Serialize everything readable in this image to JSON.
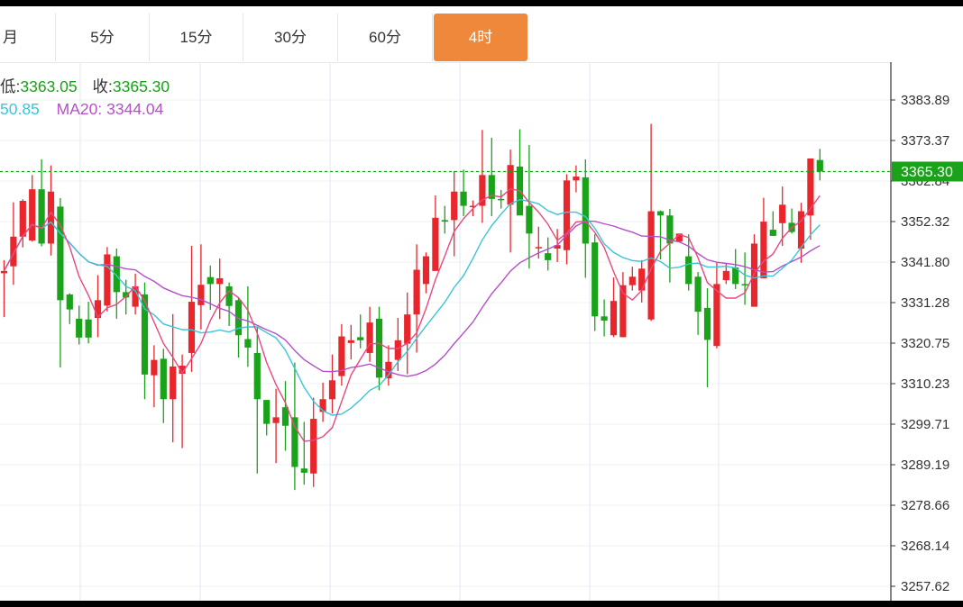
{
  "tabs": [
    {
      "label": "月",
      "active": false
    },
    {
      "label": "5分",
      "active": false
    },
    {
      "label": "15分",
      "active": false
    },
    {
      "label": "30分",
      "active": false
    },
    {
      "label": "60分",
      "active": false
    },
    {
      "label": "4时",
      "active": true
    }
  ],
  "legend": {
    "low_label": "低:",
    "low_value": "3363.05",
    "close_label": "收:",
    "close_value": "3365.30",
    "ma_partial_value": "50.85",
    "ma20_label": "MA20:",
    "ma20_value": "3344.04"
  },
  "colors": {
    "up": "#e8262b",
    "down": "#1aa21a",
    "ma_pink": "#e8487f",
    "ma_cyan": "#3cc4d8",
    "ma_purple": "#b450c8",
    "active_tab": "#f0883c",
    "current_price_line": "#1aa21a"
  },
  "chart_data": {
    "type": "candlestick",
    "current_price": "3365.30",
    "y_ticks": [
      "3383.89",
      "3373.37",
      "3362.84",
      "3352.32",
      "3341.80",
      "3331.28",
      "3320.75",
      "3310.23",
      "3299.71",
      "3289.19",
      "3278.66",
      "3268.14",
      "3257.62"
    ],
    "candles": [
      [
        3338.9,
        3339.5,
        3327.5,
        3342.3
      ],
      [
        3340.7,
        3348.4,
        3335.9,
        3357.3
      ],
      [
        3348.4,
        3357.7,
        3345.6,
        3358.1
      ],
      [
        3347.4,
        3360.7,
        3347.1,
        3364.4
      ],
      [
        3360.7,
        3346.6,
        3345.9,
        3368.5
      ],
      [
        3346.6,
        3360.1,
        3343.5,
        3366.9
      ],
      [
        3356.2,
        3331.9,
        3314.4,
        3358.4
      ],
      [
        3333.4,
        3329.5,
        3325.7,
        3333.7
      ],
      [
        3327.1,
        3322.2,
        3320.4,
        3330.5
      ],
      [
        3326.9,
        3322.2,
        3320.7,
        3331.5
      ],
      [
        3327.3,
        3331.9,
        3322.3,
        3338.4
      ],
      [
        3330.5,
        3343.8,
        3329.0,
        3345.7
      ],
      [
        3343.3,
        3334.0,
        3327.1,
        3345.3
      ],
      [
        3334.0,
        3332.6,
        3328.2,
        3337.2
      ],
      [
        3330.2,
        3335.5,
        3328.2,
        3338.8
      ],
      [
        3333.4,
        3312.6,
        3306.2,
        3336.5
      ],
      [
        3312.4,
        3316.4,
        3304.1,
        3320.2
      ],
      [
        3316.7,
        3306.2,
        3300.0,
        3319.3
      ],
      [
        3306.2,
        3314.7,
        3295.0,
        3328.3
      ],
      [
        3312.8,
        3314.9,
        3293.5,
        3317.8
      ],
      [
        3318.2,
        3331.5,
        3313.3,
        3346.0
      ],
      [
        3330.6,
        3335.9,
        3324.3,
        3346.4
      ],
      [
        3337.9,
        3336.1,
        3329.4,
        3340.9
      ],
      [
        3336.1,
        3337.6,
        3327.0,
        3342.7
      ],
      [
        3335.5,
        3330.4,
        3325.2,
        3336.5
      ],
      [
        3331.9,
        3322.8,
        3317.0,
        3332.5
      ],
      [
        3321.8,
        3319.6,
        3314.6,
        3335.5
      ],
      [
        3318.2,
        3306.2,
        3286.9,
        3325.1
      ],
      [
        3306.0,
        3299.8,
        3296.8,
        3305.5
      ],
      [
        3300.0,
        3301.5,
        3289.6,
        3308.9
      ],
      [
        3304.1,
        3299.3,
        3292.8,
        3310.9
      ],
      [
        3301.5,
        3288.6,
        3282.6,
        3315.7
      ],
      [
        3288.2,
        3287.1,
        3284.0,
        3300.3
      ],
      [
        3286.9,
        3301.1,
        3283.4,
        3306.6
      ],
      [
        3302.9,
        3306.2,
        3300.3,
        3310.5
      ],
      [
        3306.2,
        3311.1,
        3302.5,
        3317.8
      ],
      [
        3312.2,
        3322.5,
        3309.7,
        3325.7
      ],
      [
        3320.8,
        3321.5,
        3316.5,
        3325.5
      ],
      [
        3322.3,
        3321.5,
        3319.4,
        3328.2
      ],
      [
        3318.2,
        3326.1,
        3315.9,
        3330.2
      ],
      [
        3327.1,
        3311.8,
        3308.5,
        3330.2
      ],
      [
        3311.6,
        3315.9,
        3309.7,
        3320.2
      ],
      [
        3316.4,
        3321.5,
        3313.5,
        3327.3
      ],
      [
        3320.6,
        3328.2,
        3312.7,
        3333.9
      ],
      [
        3328.2,
        3339.8,
        3318.3,
        3346.4
      ],
      [
        3336.1,
        3343.3,
        3333.7,
        3344.3
      ],
      [
        3339.5,
        3353.3,
        3339.5,
        3359.1
      ],
      [
        3352.7,
        3352.3,
        3349.2,
        3356.4
      ],
      [
        3352.7,
        3360.1,
        3343.3,
        3365.4
      ],
      [
        3360.1,
        3356.4,
        3353.7,
        3365.8
      ],
      [
        3356.4,
        3356.4,
        3353.7,
        3357.8
      ],
      [
        3356.4,
        3364.4,
        3352.0,
        3376.1
      ],
      [
        3364.4,
        3358.2,
        3353.7,
        3374.1
      ],
      [
        3358.2,
        3358.1,
        3355.7,
        3360.5
      ],
      [
        3356.7,
        3367.0,
        3344.3,
        3371.0
      ],
      [
        3366.6,
        3353.9,
        3354.2,
        3376.3
      ],
      [
        3356.4,
        3349.2,
        3340.1,
        3372.2
      ],
      [
        3345.6,
        3345.7,
        3342.7,
        3351.0
      ],
      [
        3344.1,
        3342.3,
        3339.6,
        3348.2
      ],
      [
        3345.3,
        3346.2,
        3341.8,
        3350.4
      ],
      [
        3344.9,
        3363.0,
        3341.2,
        3364.6
      ],
      [
        3363.0,
        3364.0,
        3359.9,
        3366.9
      ],
      [
        3363.8,
        3346.6,
        3337.7,
        3368.5
      ],
      [
        3346.9,
        3327.7,
        3323.9,
        3349.0
      ],
      [
        3327.7,
        3326.6,
        3322.5,
        3332.1
      ],
      [
        3322.8,
        3331.7,
        3322.3,
        3337.8
      ],
      [
        3322.3,
        3335.8,
        3322.3,
        3339.2
      ],
      [
        3335.8,
        3338.0,
        3334.4,
        3340.6
      ],
      [
        3334.4,
        3340.1,
        3331.3,
        3342.3
      ],
      [
        3326.9,
        3355.0,
        3326.5,
        3377.7
      ],
      [
        3355.0,
        3353.9,
        3342.5,
        3355.2
      ],
      [
        3353.9,
        3346.6,
        3336.5,
        3355.6
      ],
      [
        3347.1,
        3349.2,
        3347.1,
        3349.2
      ],
      [
        3343.3,
        3336.1,
        3334.4,
        3349.0
      ],
      [
        3338.0,
        3328.9,
        3322.9,
        3339.2
      ],
      [
        3329.9,
        3321.6,
        3309.3,
        3335.0
      ],
      [
        3320.0,
        3336.1,
        3319.4,
        3341.6
      ],
      [
        3337.1,
        3339.5,
        3336.1,
        3341.6
      ],
      [
        3340.4,
        3336.1,
        3334.8,
        3345.2
      ],
      [
        3336.1,
        3335.8,
        3330.7,
        3344.3
      ],
      [
        3330.2,
        3346.6,
        3330.2,
        3349.0
      ],
      [
        3337.6,
        3352.3,
        3337.6,
        3358.5
      ],
      [
        3350.2,
        3348.6,
        3348.6,
        3355.0
      ],
      [
        3351.9,
        3356.7,
        3346.0,
        3361.4
      ],
      [
        3352.0,
        3349.6,
        3349.2,
        3355.7
      ],
      [
        3345.3,
        3355.0,
        3341.6,
        3357.2
      ],
      [
        3353.9,
        3368.7,
        3347.6,
        3368.6
      ],
      [
        3368.3,
        3365.3,
        3363.0,
        3371.2
      ]
    ]
  }
}
